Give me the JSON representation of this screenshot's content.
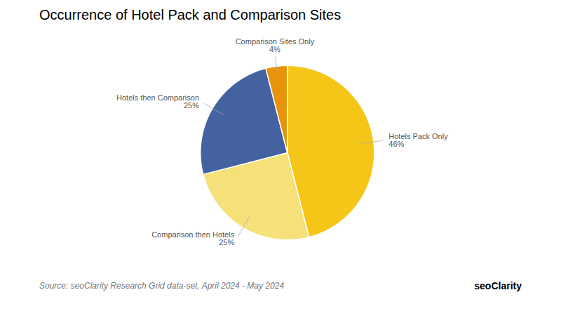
{
  "chart_data": {
    "type": "pie",
    "title": "Occurrence of Hotel Pack and Comparison Sites",
    "categories": [
      "Hotels Pack Only",
      "Comparison then Hotels",
      "Hotels then Comparison",
      "Comparison Sites Only"
    ],
    "values": [
      46,
      25,
      25,
      4
    ],
    "value_labels": [
      "46%",
      "25%",
      "25%",
      "4%"
    ],
    "colors": [
      "#F5C518",
      "#F5E07A",
      "#4462A0",
      "#E8930A"
    ],
    "data_labels": true,
    "annotations": [
      "Source: seoClarity Research Grid data-set, April 2024 - May 2024",
      "seoClarity"
    ]
  }
}
